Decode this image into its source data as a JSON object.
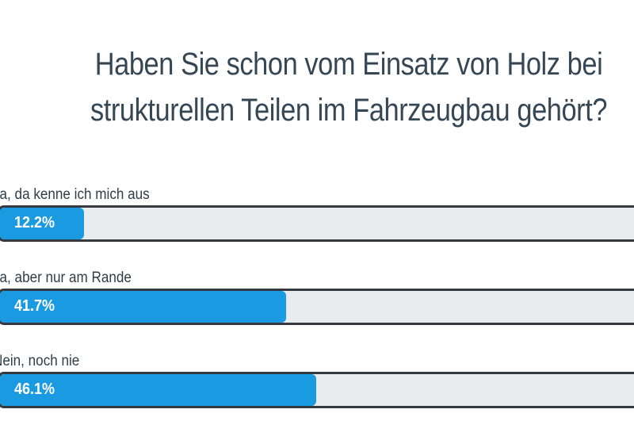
{
  "chart_data": {
    "type": "bar",
    "orientation": "horizontal",
    "title": "Haben Sie schon vom Einsatz von Holz bei strukturellen Teilen im Fahrzeugbau gehört?",
    "categories": [
      "Ja, da kenne ich mich aus",
      "Ja, aber nur am Rande",
      "Nein, noch nie"
    ],
    "values": [
      12.2,
      41.7,
      46.1
    ],
    "value_labels": [
      "12.2%",
      "41.7%",
      "46.1%"
    ],
    "unit": "%",
    "xlim": [
      0,
      100
    ],
    "colors": {
      "fill": "#1a9ae0",
      "track": "#e9ecef",
      "border": "#343a40",
      "title": "#354755"
    }
  }
}
